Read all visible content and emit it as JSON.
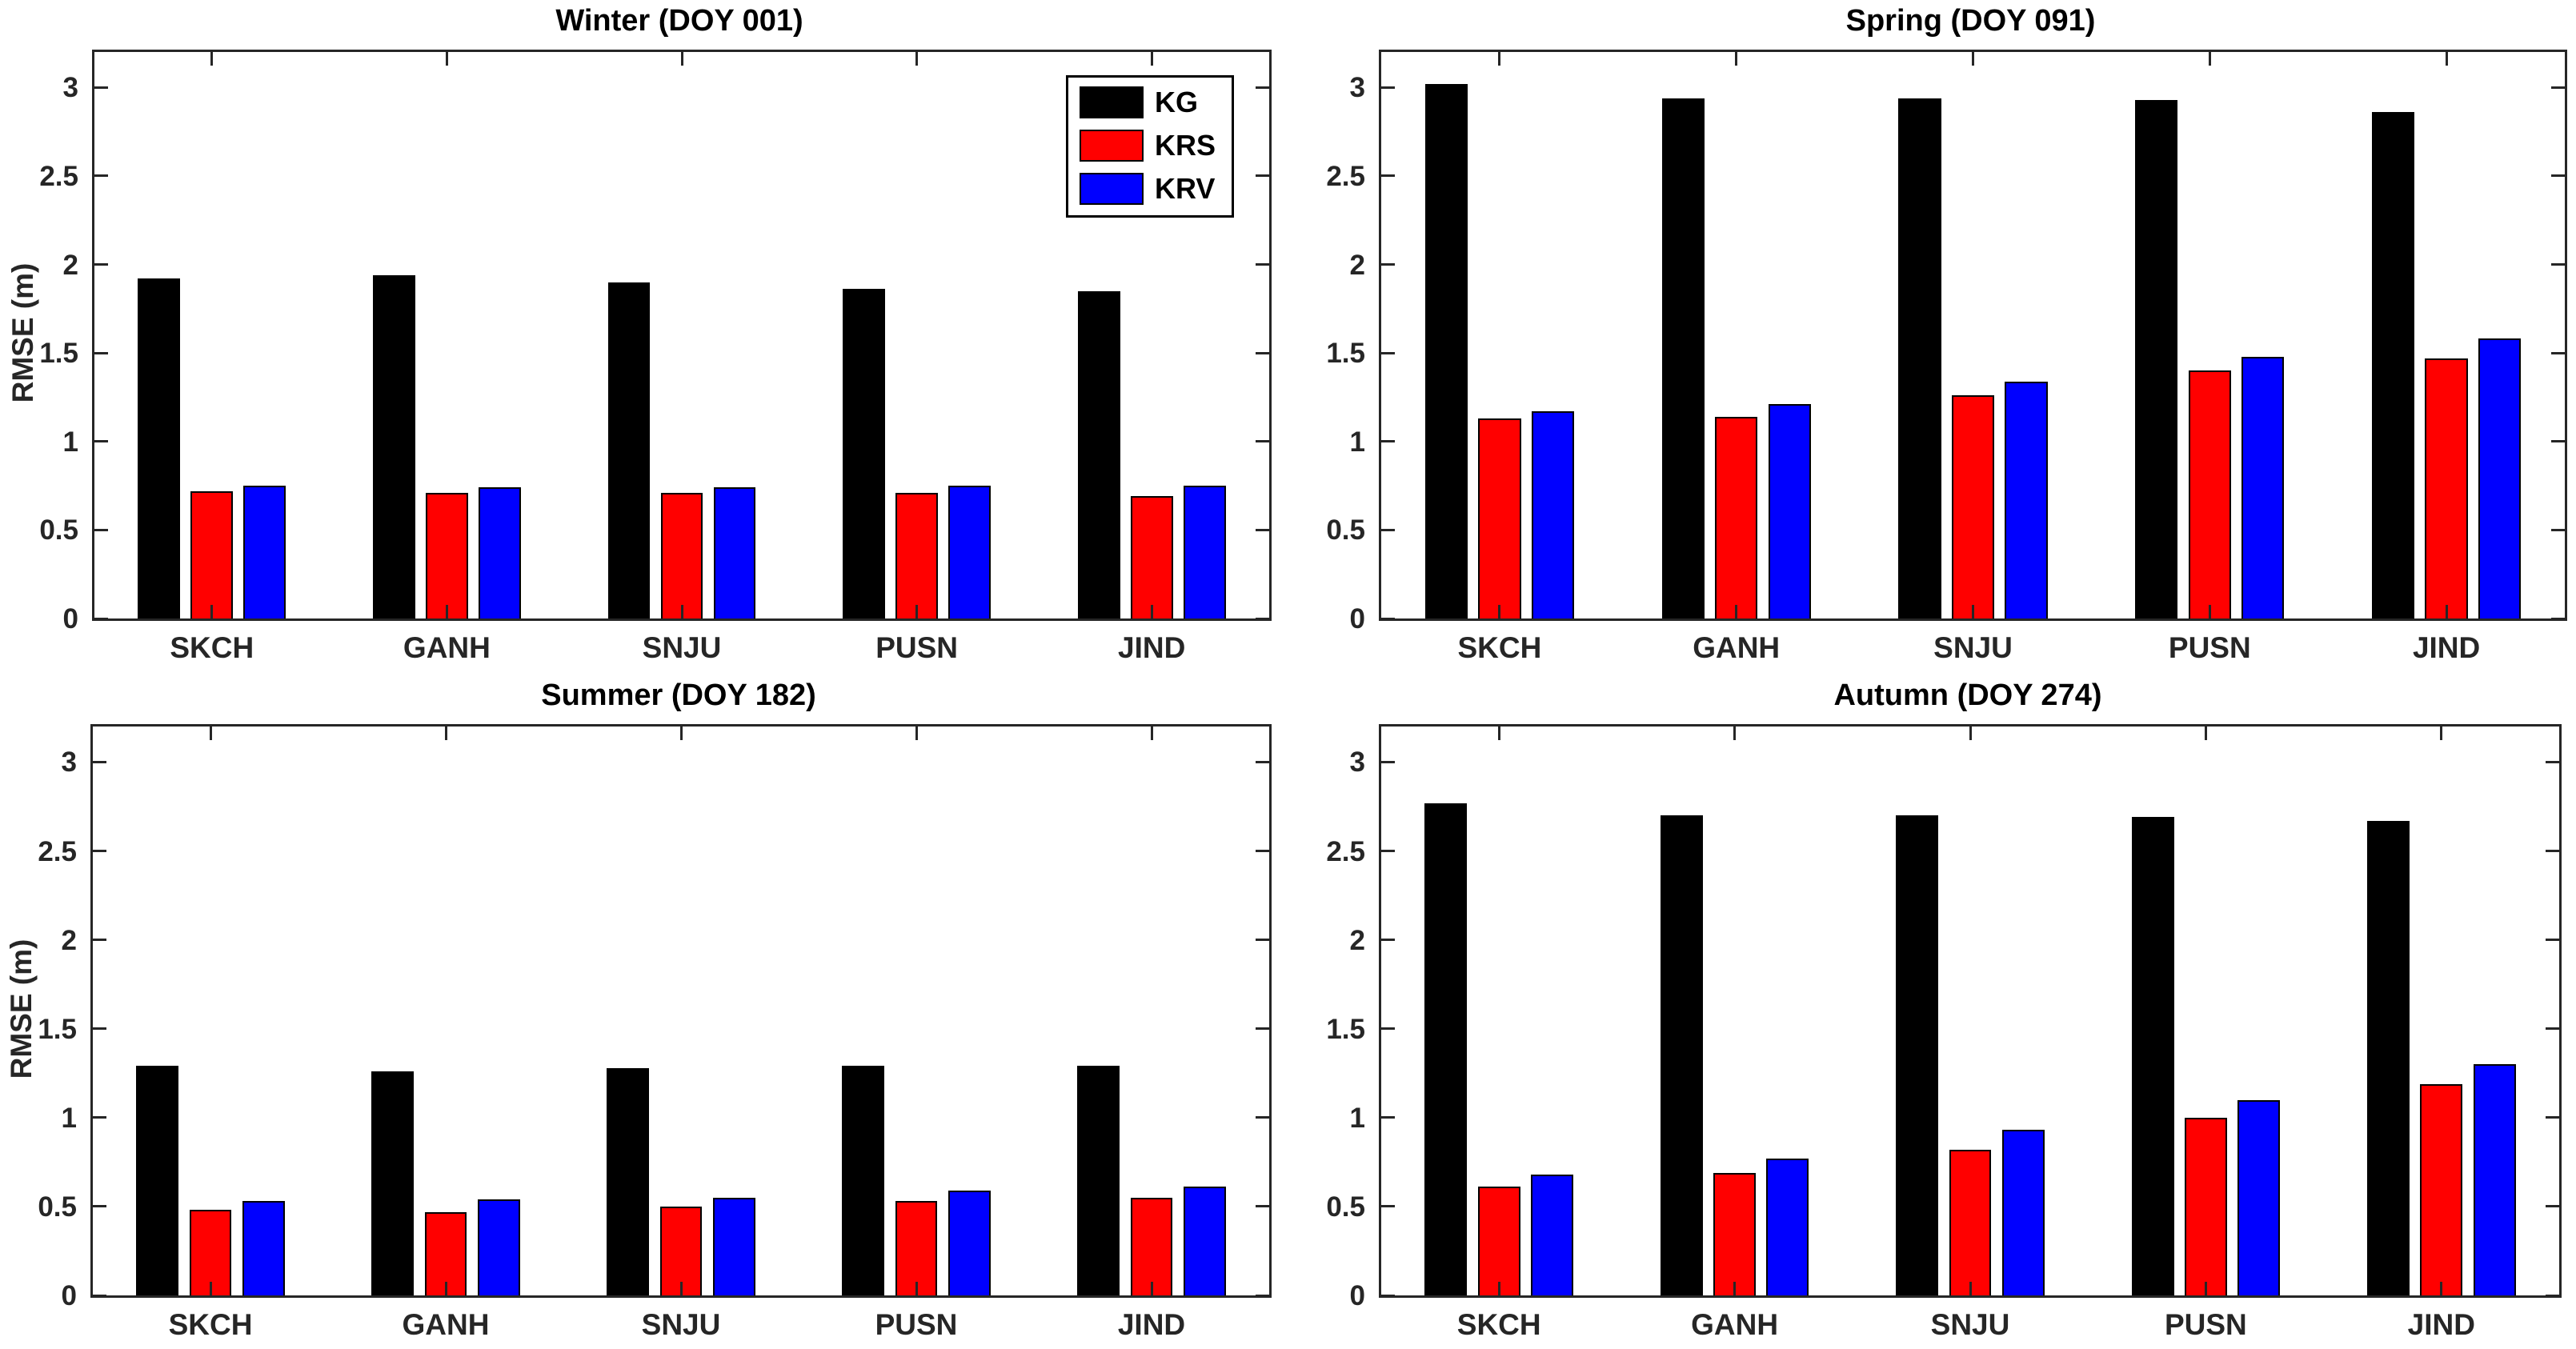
{
  "figure": {
    "background": "#ffffff",
    "axis_color": "#262626",
    "bar_edge_color": "#000000"
  },
  "legend": {
    "entries": [
      {
        "label": "KG",
        "color": "#000000"
      },
      {
        "label": "KRS",
        "color": "#ff0000"
      },
      {
        "label": "KRV",
        "color": "#0000ff"
      }
    ]
  },
  "chart_data": [
    {
      "type": "bar",
      "title": "Winter (DOY 001)",
      "ylabel": "RMSE (m)",
      "categories": [
        "SKCH",
        "GANH",
        "SNJU",
        "PUSN",
        "JIND"
      ],
      "series": [
        {
          "name": "KG",
          "color": "#000000",
          "values": [
            1.92,
            1.94,
            1.9,
            1.86,
            1.85
          ]
        },
        {
          "name": "KRS",
          "color": "#ff0000",
          "values": [
            0.72,
            0.71,
            0.71,
            0.71,
            0.69
          ]
        },
        {
          "name": "KRV",
          "color": "#0000ff",
          "values": [
            0.75,
            0.74,
            0.74,
            0.75,
            0.75
          ]
        }
      ],
      "ylim": [
        0,
        3.2
      ],
      "yticks": [
        0,
        0.5,
        1,
        1.5,
        2,
        2.5,
        3
      ],
      "ytick_labels": [
        "0",
        "0.5",
        "1",
        "1.5",
        "2",
        "2.5",
        "3"
      ],
      "grid": false,
      "legend_position": "upper-right-inside"
    },
    {
      "type": "bar",
      "title": "Spring (DOY 091)",
      "ylabel": "",
      "categories": [
        "SKCH",
        "GANH",
        "SNJU",
        "PUSN",
        "JIND"
      ],
      "series": [
        {
          "name": "KG",
          "color": "#000000",
          "values": [
            3.02,
            2.94,
            2.94,
            2.93,
            2.86
          ]
        },
        {
          "name": "KRS",
          "color": "#ff0000",
          "values": [
            1.13,
            1.14,
            1.26,
            1.4,
            1.47
          ]
        },
        {
          "name": "KRV",
          "color": "#0000ff",
          "values": [
            1.17,
            1.21,
            1.34,
            1.48,
            1.58
          ]
        }
      ],
      "ylim": [
        0,
        3.2
      ],
      "yticks": [
        0,
        0.5,
        1,
        1.5,
        2,
        2.5,
        3
      ],
      "ytick_labels": [
        "0",
        "0.5",
        "1",
        "1.5",
        "2",
        "2.5",
        "3"
      ],
      "grid": false,
      "legend_position": "none"
    },
    {
      "type": "bar",
      "title": "Summer (DOY 182)",
      "ylabel": "RMSE (m)",
      "categories": [
        "SKCH",
        "GANH",
        "SNJU",
        "PUSN",
        "JIND"
      ],
      "series": [
        {
          "name": "KG",
          "color": "#000000",
          "values": [
            1.29,
            1.26,
            1.28,
            1.29,
            1.29
          ]
        },
        {
          "name": "KRS",
          "color": "#ff0000",
          "values": [
            0.48,
            0.47,
            0.5,
            0.53,
            0.55
          ]
        },
        {
          "name": "KRV",
          "color": "#0000ff",
          "values": [
            0.53,
            0.54,
            0.55,
            0.59,
            0.61
          ]
        }
      ],
      "ylim": [
        0,
        3.2
      ],
      "yticks": [
        0,
        0.5,
        1,
        1.5,
        2,
        2.5,
        3
      ],
      "ytick_labels": [
        "0",
        "0.5",
        "1",
        "1.5",
        "2",
        "2.5",
        "3"
      ],
      "grid": false,
      "legend_position": "none"
    },
    {
      "type": "bar",
      "title": "Autumn (DOY 274)",
      "ylabel": "",
      "categories": [
        "SKCH",
        "GANH",
        "SNJU",
        "PUSN",
        "JIND"
      ],
      "series": [
        {
          "name": "KG",
          "color": "#000000",
          "values": [
            2.77,
            2.7,
            2.7,
            2.69,
            2.67
          ]
        },
        {
          "name": "KRS",
          "color": "#ff0000",
          "values": [
            0.61,
            0.69,
            0.82,
            1.0,
            1.19
          ]
        },
        {
          "name": "KRV",
          "color": "#0000ff",
          "values": [
            0.68,
            0.77,
            0.93,
            1.1,
            1.3
          ]
        }
      ],
      "ylim": [
        0,
        3.2
      ],
      "yticks": [
        0,
        0.5,
        1,
        1.5,
        2,
        2.5,
        3
      ],
      "ytick_labels": [
        "0",
        "0.5",
        "1",
        "1.5",
        "2",
        "2.5",
        "3"
      ],
      "grid": false,
      "legend_position": "none"
    }
  ]
}
